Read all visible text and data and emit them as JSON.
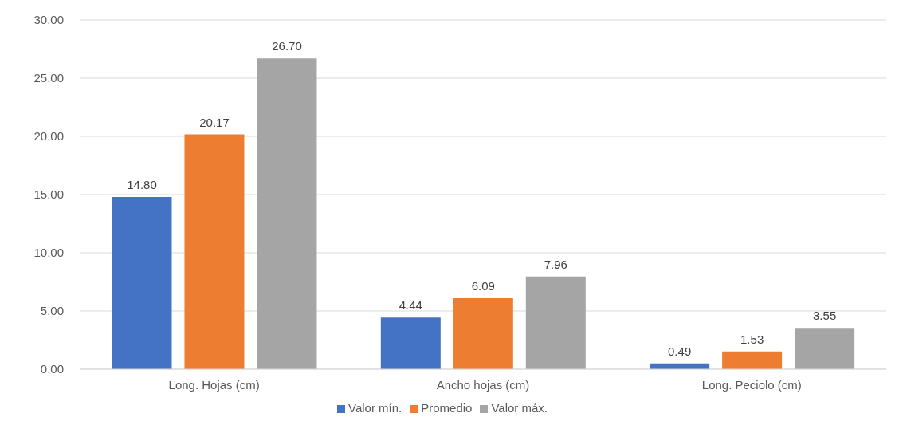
{
  "chart_data": {
    "type": "bar",
    "categories": [
      "Long. Hojas (cm)",
      "Ancho hojas (cm)",
      "Long. Peciolo (cm)"
    ],
    "series": [
      {
        "name": "Valor mín.",
        "color": "#4472c4",
        "values": [
          14.8,
          4.44,
          0.49
        ],
        "value_labels": [
          "14.80",
          "4.44",
          "0.49"
        ]
      },
      {
        "name": "Promedio",
        "color": "#ed7d31",
        "values": [
          20.17,
          6.09,
          1.53
        ],
        "value_labels": [
          "20.17",
          "6.09",
          "1.53"
        ]
      },
      {
        "name": "Valor máx.",
        "color": "#a5a5a5",
        "values": [
          26.7,
          7.96,
          3.55
        ],
        "value_labels": [
          "26.70",
          "7.96",
          "3.55"
        ]
      }
    ],
    "ylim": [
      0,
      30
    ],
    "yticks": [
      {
        "value": 0,
        "label": "0.00"
      },
      {
        "value": 5,
        "label": "5.00"
      },
      {
        "value": 10,
        "label": "10.00"
      },
      {
        "value": 15,
        "label": "15.00"
      },
      {
        "value": 20,
        "label": "20.00"
      },
      {
        "value": 25,
        "label": "25.00"
      },
      {
        "value": 30,
        "label": "30.00"
      }
    ],
    "grid": "y",
    "legend": "bottom"
  }
}
